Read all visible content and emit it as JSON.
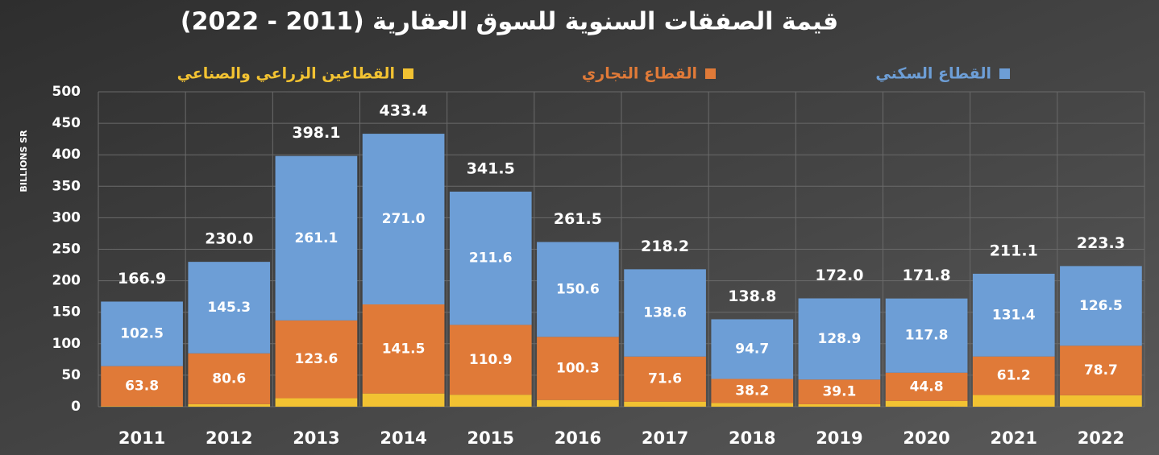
{
  "chart_data": {
    "type": "stacked-bar",
    "title": "قيمة الصفقات السنوية للسوق العقارية (2011 - 2022)",
    "y_label": "BILLIONS SR",
    "categories": [
      "2011",
      "2012",
      "2013",
      "2014",
      "2015",
      "2016",
      "2017",
      "2018",
      "2019",
      "2020",
      "2021",
      "2022"
    ],
    "series": [
      {
        "name": "القطاعين الزراعي والصناعي",
        "color": "#f2c232",
        "values": [
          0.6,
          4.1,
          13.4,
          20.9,
          19.0,
          10.6,
          8.0,
          5.9,
          4.0,
          9.2,
          18.5,
          18.1
        ]
      },
      {
        "name": "القطاع التجاري",
        "color": "#e07a38",
        "values": [
          63.8,
          80.6,
          123.6,
          141.5,
          110.9,
          100.3,
          71.6,
          38.2,
          39.1,
          44.8,
          61.2,
          78.7
        ],
        "value_labels": [
          "63.8",
          "80.6",
          "123.6",
          "141.5",
          "110.9",
          "100.3",
          "71.6",
          "38.2",
          "39.1",
          "44.8",
          "61.2",
          "78.7"
        ]
      },
      {
        "name": "القطاع السكني",
        "color": "#6d9ed6",
        "values": [
          102.5,
          145.3,
          261.1,
          271,
          211.6,
          150.6,
          138.6,
          94.7,
          128.9,
          117.8,
          131.4,
          126.5
        ],
        "value_labels": [
          "102.5",
          "145.3",
          "261.1",
          "271.0",
          "211.6",
          "150.6",
          "138.6",
          "94.7",
          "128.9",
          "117.8",
          "131.4",
          "126.5"
        ]
      }
    ],
    "totals": {
      "values": [
        166.9,
        230,
        398.1,
        433.4,
        341.5,
        261.5,
        218.2,
        138.8,
        172,
        171.8,
        211.1,
        223.3
      ],
      "value_labels": [
        "166.9",
        "230.0",
        "398.1",
        "433.4",
        "341.5",
        "261.5",
        "218.2",
        "138.8",
        "172.0",
        "171.8",
        "211.1",
        "223.3"
      ]
    },
    "ylim": [
      0,
      500
    ],
    "yticks": [
      0,
      50,
      100,
      150,
      200,
      250,
      300,
      350,
      400,
      450,
      500
    ],
    "grid": true
  }
}
